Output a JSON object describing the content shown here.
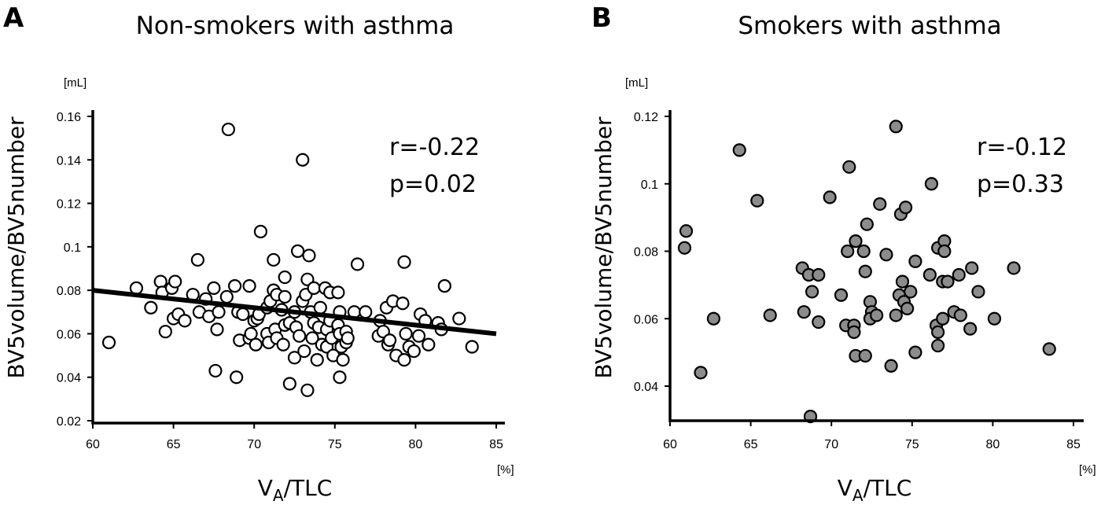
{
  "chart_data": [
    {
      "type": "scatter",
      "panel": "A",
      "title": "Non-smokers with asthma",
      "ylabel": "BV5volume/BV5number",
      "xlabel_main": "V",
      "xlabel_sub": "A",
      "xlabel_rest": "/TLC",
      "y_unit": "[mL]",
      "x_unit": "[%]",
      "xlim": [
        60,
        86
      ],
      "ylim": [
        0.02,
        0.165
      ],
      "xticks": [
        60,
        65,
        70,
        75,
        80,
        85
      ],
      "yticks": [
        0.02,
        0.04,
        0.06,
        0.08,
        0.1,
        0.12,
        0.14,
        0.16
      ],
      "stats": [
        "r=-0.22",
        "p=0.02"
      ],
      "marker_fill": "#ffffff",
      "marker_stroke": "#000000",
      "regression": {
        "x": [
          60,
          85
        ],
        "y": [
          0.08,
          0.06
        ]
      },
      "points": [
        [
          61.0,
          0.056
        ],
        [
          62.7,
          0.081
        ],
        [
          63.6,
          0.072
        ],
        [
          64.2,
          0.084
        ],
        [
          64.3,
          0.079
        ],
        [
          64.5,
          0.061
        ],
        [
          64.9,
          0.081
        ],
        [
          65.1,
          0.084
        ],
        [
          65.0,
          0.067
        ],
        [
          65.3,
          0.069
        ],
        [
          65.7,
          0.066
        ],
        [
          66.2,
          0.078
        ],
        [
          66.5,
          0.094
        ],
        [
          66.6,
          0.07
        ],
        [
          67.0,
          0.076
        ],
        [
          67.2,
          0.068
        ],
        [
          67.5,
          0.081
        ],
        [
          67.8,
          0.07
        ],
        [
          67.7,
          0.062
        ],
        [
          67.6,
          0.043
        ],
        [
          68.3,
          0.077
        ],
        [
          68.4,
          0.154
        ],
        [
          68.8,
          0.082
        ],
        [
          69.0,
          0.07
        ],
        [
          68.9,
          0.04
        ],
        [
          69.1,
          0.057
        ],
        [
          69.3,
          0.069
        ],
        [
          69.7,
          0.082
        ],
        [
          69.7,
          0.058
        ],
        [
          69.8,
          0.06
        ],
        [
          70.0,
          0.066
        ],
        [
          70.2,
          0.067
        ],
        [
          70.1,
          0.055
        ],
        [
          70.3,
          0.069
        ],
        [
          70.4,
          0.107
        ],
        [
          70.8,
          0.072
        ],
        [
          70.8,
          0.06
        ],
        [
          71.0,
          0.075
        ],
        [
          70.9,
          0.056
        ],
        [
          71.2,
          0.08
        ],
        [
          71.2,
          0.094
        ],
        [
          71.3,
          0.062
        ],
        [
          71.4,
          0.078
        ],
        [
          71.4,
          0.058
        ],
        [
          71.7,
          0.071
        ],
        [
          71.9,
          0.086
        ],
        [
          71.9,
          0.077
        ],
        [
          71.9,
          0.064
        ],
        [
          71.8,
          0.055
        ],
        [
          72.2,
          0.065
        ],
        [
          72.2,
          0.037
        ],
        [
          72.5,
          0.07
        ],
        [
          72.5,
          0.049
        ],
        [
          72.6,
          0.063
        ],
        [
          72.7,
          0.098
        ],
        [
          72.8,
          0.059
        ],
        [
          73.0,
          0.14
        ],
        [
          73.0,
          0.075
        ],
        [
          73.2,
          0.078
        ],
        [
          73.1,
          0.052
        ],
        [
          73.3,
          0.034
        ],
        [
          73.4,
          0.096
        ],
        [
          73.3,
          0.085
        ],
        [
          73.5,
          0.07
        ],
        [
          73.6,
          0.058
        ],
        [
          73.7,
          0.081
        ],
        [
          73.7,
          0.065
        ],
        [
          74.0,
          0.063
        ],
        [
          73.9,
          0.048
        ],
        [
          74.1,
          0.072
        ],
        [
          74.2,
          0.055
        ],
        [
          74.4,
          0.081
        ],
        [
          74.5,
          0.062
        ],
        [
          74.5,
          0.054
        ],
        [
          74.7,
          0.079
        ],
        [
          74.7,
          0.066
        ],
        [
          74.8,
          0.058
        ],
        [
          74.9,
          0.05
        ],
        [
          75.2,
          0.079
        ],
        [
          75.3,
          0.07
        ],
        [
          75.2,
          0.064
        ],
        [
          75.3,
          0.06
        ],
        [
          75.4,
          0.054
        ],
        [
          75.3,
          0.04
        ],
        [
          75.5,
          0.048
        ],
        [
          75.7,
          0.061
        ],
        [
          75.7,
          0.056
        ],
        [
          75.8,
          0.058
        ],
        [
          76.2,
          0.07
        ],
        [
          76.4,
          0.092
        ],
        [
          76.9,
          0.07
        ],
        [
          77.8,
          0.066
        ],
        [
          77.7,
          0.059
        ],
        [
          78.0,
          0.061
        ],
        [
          78.2,
          0.072
        ],
        [
          78.3,
          0.055
        ],
        [
          78.4,
          0.057
        ],
        [
          78.6,
          0.075
        ],
        [
          78.8,
          0.05
        ],
        [
          79.2,
          0.074
        ],
        [
          79.3,
          0.093
        ],
        [
          79.4,
          0.06
        ],
        [
          79.3,
          0.048
        ],
        [
          79.6,
          0.054
        ],
        [
          79.9,
          0.052
        ],
        [
          80.2,
          0.059
        ],
        [
          80.3,
          0.069
        ],
        [
          80.6,
          0.066
        ],
        [
          80.8,
          0.055
        ],
        [
          81.4,
          0.065
        ],
        [
          81.6,
          0.062
        ],
        [
          81.8,
          0.082
        ],
        [
          82.7,
          0.067
        ],
        [
          83.5,
          0.054
        ]
      ]
    },
    {
      "type": "scatter",
      "panel": "B",
      "title": "Smokers with asthma",
      "ylabel": "BV5volume/BV5number",
      "xlabel_main": "V",
      "xlabel_sub": "A",
      "xlabel_rest": "/TLC",
      "y_unit": "[mL]",
      "x_unit": "[%]",
      "xlim": [
        60,
        86
      ],
      "ylim": [
        0.03,
        0.123
      ],
      "xticks": [
        60,
        65,
        70,
        75,
        80,
        85
      ],
      "yticks": [
        0.04,
        0.06,
        0.08,
        0.1,
        0.12
      ],
      "ytick_labels": [
        "0.04",
        "0.06",
        "0.08",
        "0.1",
        "0.12"
      ],
      "stats": [
        "r=-0.12",
        "p=0.33"
      ],
      "marker_fill": "#8c8c8c",
      "marker_stroke": "#000000",
      "points": [
        [
          60.9,
          0.081
        ],
        [
          61.0,
          0.086
        ],
        [
          61.9,
          0.044
        ],
        [
          62.7,
          0.06
        ],
        [
          64.3,
          0.11
        ],
        [
          65.4,
          0.095
        ],
        [
          66.2,
          0.061
        ],
        [
          68.2,
          0.075
        ],
        [
          68.3,
          0.062
        ],
        [
          68.6,
          0.073
        ],
        [
          68.8,
          0.068
        ],
        [
          68.7,
          0.031
        ],
        [
          69.2,
          0.073
        ],
        [
          69.2,
          0.059
        ],
        [
          69.9,
          0.096
        ],
        [
          70.6,
          0.067
        ],
        [
          70.9,
          0.058
        ],
        [
          71.1,
          0.105
        ],
        [
          71.0,
          0.08
        ],
        [
          71.4,
          0.058
        ],
        [
          71.4,
          0.056
        ],
        [
          71.5,
          0.083
        ],
        [
          71.5,
          0.049
        ],
        [
          72.0,
          0.08
        ],
        [
          72.1,
          0.074
        ],
        [
          72.2,
          0.088
        ],
        [
          72.1,
          0.049
        ],
        [
          72.4,
          0.065
        ],
        [
          72.5,
          0.062
        ],
        [
          72.4,
          0.06
        ],
        [
          72.8,
          0.061
        ],
        [
          73.0,
          0.094
        ],
        [
          73.4,
          0.079
        ],
        [
          73.7,
          0.046
        ],
        [
          74.0,
          0.117
        ],
        [
          74.0,
          0.061
        ],
        [
          74.2,
          0.067
        ],
        [
          74.3,
          0.091
        ],
        [
          74.4,
          0.071
        ],
        [
          74.6,
          0.093
        ],
        [
          74.5,
          0.065
        ],
        [
          74.7,
          0.063
        ],
        [
          74.9,
          0.068
        ],
        [
          75.2,
          0.077
        ],
        [
          75.2,
          0.05
        ],
        [
          76.2,
          0.1
        ],
        [
          76.1,
          0.073
        ],
        [
          76.5,
          0.058
        ],
        [
          76.6,
          0.081
        ],
        [
          76.6,
          0.056
        ],
        [
          76.6,
          0.052
        ],
        [
          76.9,
          0.06
        ],
        [
          77.0,
          0.083
        ],
        [
          77.0,
          0.08
        ],
        [
          76.9,
          0.071
        ],
        [
          77.2,
          0.071
        ],
        [
          77.6,
          0.062
        ],
        [
          77.9,
          0.073
        ],
        [
          78.0,
          0.061
        ],
        [
          78.6,
          0.057
        ],
        [
          78.7,
          0.075
        ],
        [
          79.1,
          0.068
        ],
        [
          80.1,
          0.06
        ],
        [
          81.3,
          0.075
        ],
        [
          83.5,
          0.051
        ]
      ]
    }
  ]
}
